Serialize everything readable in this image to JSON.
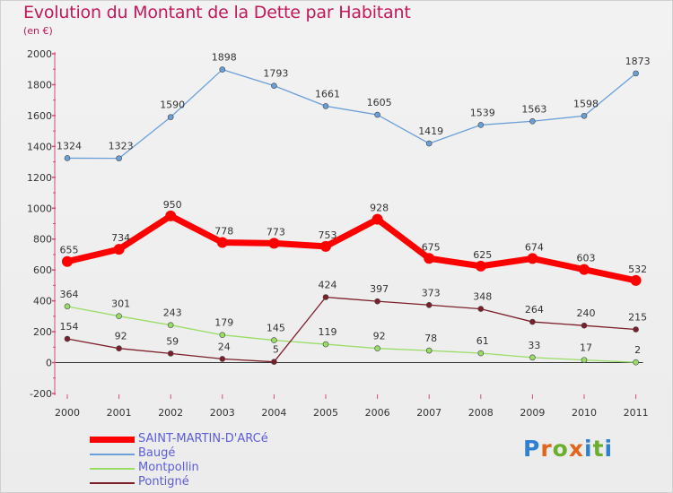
{
  "chart_data": {
    "type": "line",
    "title": "Evolution du Montant de la Dette par Habitant",
    "subtitle": "(en €)",
    "x": [
      "2000",
      "2001",
      "2002",
      "2003",
      "2004",
      "2005",
      "2006",
      "2007",
      "2008",
      "2009",
      "2010",
      "2011"
    ],
    "ylim": [
      -200,
      2000
    ],
    "yticks": [
      -200,
      0,
      200,
      400,
      600,
      800,
      1000,
      1200,
      1400,
      1600,
      1800,
      2000
    ],
    "grid": false,
    "legend_position": "bottom-left",
    "series": [
      {
        "name": "SAINT-MARTIN-D'ARCé",
        "color": "#ff0000",
        "values": [
          655,
          734,
          950,
          778,
          773,
          753,
          928,
          675,
          625,
          674,
          603,
          532
        ]
      },
      {
        "name": "Baugé",
        "color": "#6a9fd8",
        "values": [
          1324,
          1323,
          1590,
          1898,
          1793,
          1661,
          1605,
          1419,
          1539,
          1563,
          1598,
          1873
        ]
      },
      {
        "name": "Montpollin",
        "color": "#99dd66",
        "values": [
          364,
          301,
          243,
          179,
          145,
          119,
          92,
          78,
          61,
          33,
          17,
          2
        ]
      },
      {
        "name": "Pontigné",
        "color": "#7b1f2a",
        "values": [
          154,
          92,
          59,
          24,
          5,
          424,
          397,
          373,
          348,
          264,
          240,
          215
        ]
      }
    ]
  },
  "logo": {
    "text": "Proxiti"
  }
}
